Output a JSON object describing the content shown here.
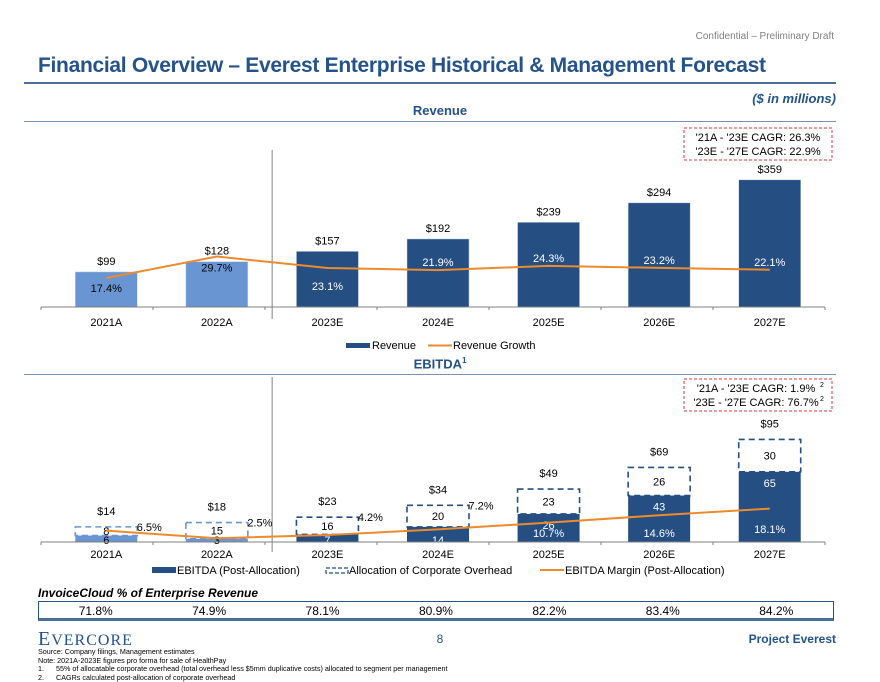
{
  "header": {
    "confidential": "Confidential – Preliminary Draft",
    "title": "Financial Overview – Everest Enterprise Historical & Management Forecast",
    "units": "($ in millions)"
  },
  "colors": {
    "brand": "#24528a",
    "bar_actual": "#6996d2",
    "bar_forecast": "#254e82",
    "line": "#ed8a2c",
    "cagr_box": "#d9383a"
  },
  "chart_data": [
    {
      "type": "bar",
      "title": "Revenue",
      "categories": [
        "2021A",
        "2022A",
        "2023E",
        "2024E",
        "2025E",
        "2026E",
        "2027E"
      ],
      "actual_count": 2,
      "series": [
        {
          "name": "Revenue",
          "values": [
            99,
            128,
            157,
            192,
            239,
            294,
            359
          ],
          "labels": [
            "$99",
            "$128",
            "$157",
            "$192",
            "$239",
            "$294",
            "$359"
          ]
        },
        {
          "name": "Revenue Growth",
          "type": "line",
          "values": [
            17.4,
            29.7,
            23.1,
            21.9,
            24.3,
            23.2,
            22.1
          ],
          "labels": [
            "17.4%",
            "29.7%",
            "23.1%",
            "21.9%",
            "24.3%",
            "23.2%",
            "22.1%"
          ]
        }
      ],
      "cagr": [
        "'21A - '23E CAGR: 26.3%",
        "'23E - '27E CAGR: 22.9%"
      ],
      "legend": [
        "Revenue",
        "Revenue Growth"
      ],
      "legend_position": "bottom",
      "ylim": [
        0,
        380
      ],
      "grid": false
    },
    {
      "type": "bar",
      "stacked": true,
      "title": "EBITDA",
      "title_sup": "1",
      "categories": [
        "2021A",
        "2022A",
        "2023E",
        "2024E",
        "2025E",
        "2026E",
        "2027E"
      ],
      "actual_count": 2,
      "series": [
        {
          "name": "EBITDA (Post-Allocation)",
          "values": [
            6,
            3,
            7,
            14,
            26,
            43,
            65
          ]
        },
        {
          "name": "Allocation of Corporate Overhead",
          "values": [
            8,
            15,
            16,
            20,
            23,
            26,
            30
          ],
          "style": "dashed-outline"
        },
        {
          "name": "EBITDA Margin (Post-Allocation)",
          "type": "line",
          "values": [
            6.5,
            2.5,
            4.2,
            7.2,
            10.7,
            14.6,
            18.1
          ],
          "labels": [
            "6.5%",
            "2.5%",
            "4.2%",
            "7.2%",
            "10.7%",
            "14.6%",
            "18.1%"
          ]
        }
      ],
      "totals": [
        "$14",
        "$18",
        "$23",
        "$34",
        "$49",
        "$69",
        "$95"
      ],
      "cagr": [
        "'21A - '23E CAGR: 1.9%",
        "'23E - '27E CAGR: 76.7%"
      ],
      "cagr_sup": "2",
      "legend": [
        "EBITDA (Post-Allocation)",
        "Allocation of Corporate Overhead",
        "EBITDA Margin (Post-Allocation)"
      ],
      "legend_position": "bottom",
      "ylim": [
        0,
        100
      ],
      "grid": false
    }
  ],
  "invoicecloud": {
    "title": "InvoiceCloud % of Enterprise Revenue",
    "values": [
      "71.8%",
      "74.9%",
      "78.1%",
      "80.9%",
      "82.2%",
      "83.4%",
      "84.2%"
    ]
  },
  "footer": {
    "logo_first": "E",
    "logo_rest": "VERCORE",
    "page": "8",
    "project": "Project Everest",
    "source": "Source: Company filings, Management estimates",
    "note": "Note: 2021A-2023E figures pro forma for sale of HealthPay",
    "footnotes": [
      {
        "num": "1.",
        "text": "55% of allocatable corporate overhead (total overhead less $5mm duplicative costs) allocated to segment per management"
      },
      {
        "num": "2.",
        "text": "CAGRs calculated post-allocation of corporate overhead"
      }
    ]
  }
}
